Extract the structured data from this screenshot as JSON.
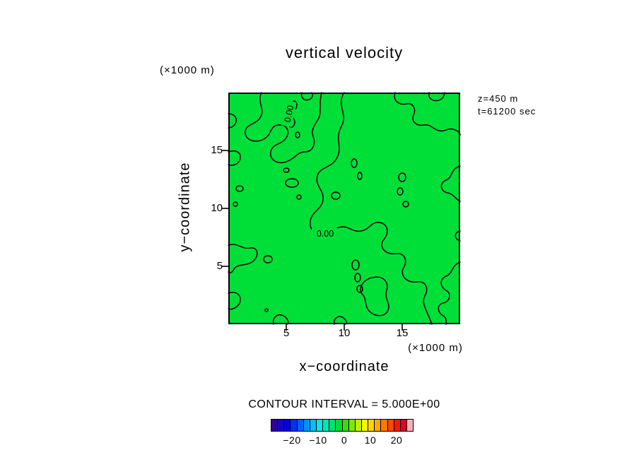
{
  "chart_data": {
    "type": "contour",
    "title": "vertical velocity",
    "xlabel": "x−coordinate",
    "ylabel": "y−coordinate",
    "x_units_label": "(×1000 m)",
    "y_units_label": "(×1000 m)",
    "xlim": [
      0,
      20
    ],
    "ylim": [
      0,
      20
    ],
    "x_ticks": [
      "5",
      "10",
      "15"
    ],
    "y_ticks": [
      "15",
      "10",
      "5"
    ],
    "annotations": {
      "height": "z=450 m",
      "time": "t=61200 sec"
    },
    "contour_interval": 5.0,
    "contour_interval_label": "CONTOUR INTERVAL = 5.000E+00",
    "visible_contour_levels": [
      0.0
    ],
    "contour_line_label": "0.00",
    "fill_color": "#00df38",
    "line_color": "#000000",
    "colorbar": {
      "approx_min": -27.5,
      "approx_max": 27.5,
      "cell_value_step": 2.5,
      "tick_labels": [
        "−20",
        "−10",
        "0",
        "10",
        "20"
      ],
      "colors": [
        "#30009c",
        "#1800c8",
        "#0000e8",
        "#0030ff",
        "#0060ff",
        "#0090ff",
        "#00c0ff",
        "#00e8e8",
        "#00e8b0",
        "#00e070",
        "#00dc32",
        "#30e000",
        "#80e800",
        "#c0f000",
        "#f8f800",
        "#ffd800",
        "#ffa800",
        "#ff7800",
        "#ff4800",
        "#f81800",
        "#e00028",
        "#ffb0b8"
      ]
    }
  }
}
